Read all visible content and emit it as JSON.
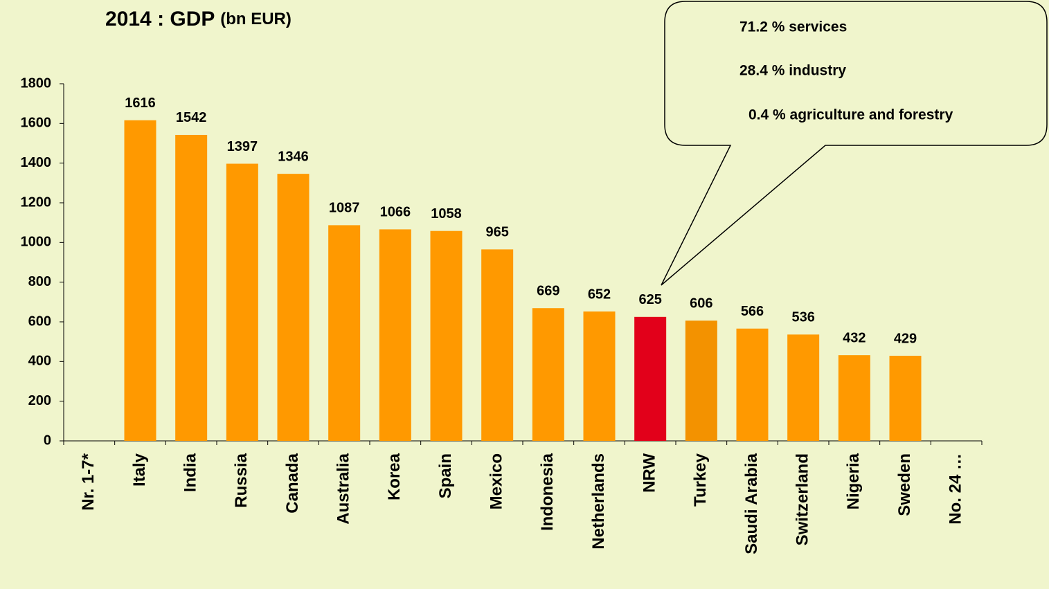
{
  "chart_data": {
    "type": "bar",
    "title": "2014 : GDP",
    "subtitle": "(bn EUR)",
    "categories": [
      "Nr. 1-7*",
      "Italy",
      "India",
      "Russia",
      "Canada",
      "Australia",
      "Korea",
      "Spain",
      "Mexico",
      "Indonesia",
      "Netherlands",
      "NRW",
      "Turkey",
      "Saudi Arabia",
      "Switzerland",
      "Nigeria",
      "Sweden",
      "No. 24 …"
    ],
    "values": [
      null,
      1616,
      1542,
      1397,
      1346,
      1087,
      1066,
      1058,
      965,
      669,
      652,
      625,
      606,
      566,
      536,
      432,
      429,
      null
    ],
    "colors": [
      "#ff9900",
      "#ff9900",
      "#ff9900",
      "#ff9900",
      "#ff9900",
      "#ff9900",
      "#ff9900",
      "#ff9900",
      "#ff9900",
      "#ff9900",
      "#ff9900",
      "#e2001a",
      "#f39200",
      "#ff9900",
      "#ff9900",
      "#ff9900",
      "#ff9900",
      "#ff9900"
    ],
    "ylim": [
      0,
      1800
    ],
    "yticks": [
      0,
      200,
      400,
      600,
      800,
      1000,
      1200,
      1400,
      1600,
      1800
    ],
    "grid": false,
    "annotations": [
      "71.2 % services",
      "28.4 % industry",
      "0.4 % agriculture and forestry"
    ]
  }
}
